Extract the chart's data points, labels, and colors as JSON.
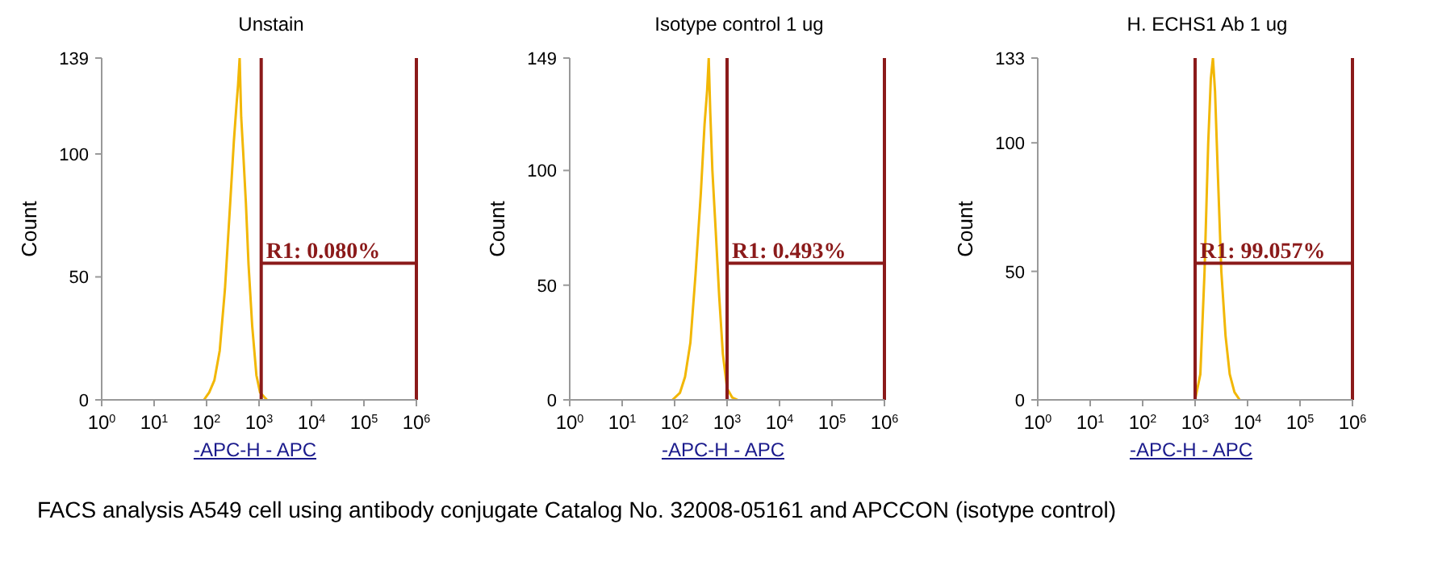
{
  "chart_data": [
    {
      "type": "line",
      "title": "Unstain",
      "xlabel": "-APC-H - APC",
      "ylabel": "Count",
      "log": "x",
      "marker": "none",
      "x": [
        89,
        112,
        141,
        178,
        224,
        282,
        331,
        372,
        398,
        427,
        457,
        501,
        562,
        631,
        741,
        891,
        1047,
        1413
      ],
      "series": [
        {
          "color": "#f2b705",
          "values": [
            0,
            3,
            8,
            20,
            45,
            80,
            105,
            120,
            128,
            139,
            115,
            100,
            80,
            55,
            30,
            10,
            3,
            0
          ]
        }
      ],
      "xlim": [
        1,
        1000000
      ],
      "xticks": [
        {
          "value": 1,
          "label": "10$^{0}$"
        },
        {
          "value": 10,
          "label": "10$^{1}$"
        },
        {
          "value": 100,
          "label": "10$^{2}$"
        },
        {
          "value": 1000,
          "label": "10$^{3}$"
        },
        {
          "value": 10000,
          "label": "10$^{4}$"
        },
        {
          "value": 100000,
          "label": "10$^{5}$"
        },
        {
          "value": 1000000,
          "label": "10$^{6}$"
        }
      ],
      "ylim": [
        0,
        139
      ],
      "yticks": [
        0,
        50,
        100,
        139
      ],
      "ref_lines": [
        {
          "axis": "x",
          "value": 1100,
          "color": "#8b1a1a"
        },
        {
          "axis": "x",
          "value": 1000000,
          "color": "#8b1a1a"
        }
      ],
      "annotations": [
        "R1: 0.080%",
        "FACS analysis A549 cell using antibody conjugate Catalog No. 32008-05161 and APCCON (isotype control)"
      ]
    },
    {
      "type": "line",
      "title": "Isotype control 1 ug",
      "xlabel": "-APC-H - APC",
      "ylabel": "Count",
      "log": "x",
      "marker": "none",
      "x": [
        91,
        126,
        158,
        200,
        251,
        316,
        372,
        417,
        447,
        479,
        525,
        603,
        708,
        832,
        1000,
        1259,
        1585
      ],
      "series": [
        {
          "color": "#f2b705",
          "values": [
            0,
            3,
            10,
            25,
            55,
            90,
            120,
            135,
            149,
            125,
            100,
            75,
            45,
            20,
            5,
            1,
            0
          ]
        }
      ],
      "xlim": [
        1,
        1000000
      ],
      "xticks": [
        {
          "value": 1,
          "label": "10$^{0}$"
        },
        {
          "value": 10,
          "label": "10$^{1}$"
        },
        {
          "value": 100,
          "label": "10$^{2}$"
        },
        {
          "value": 1000,
          "label": "10$^{3}$"
        },
        {
          "value": 10000,
          "label": "10$^{4}$"
        },
        {
          "value": 100000,
          "label": "10$^{5}$"
        },
        {
          "value": 1000000,
          "label": "10$^{6}$"
        }
      ],
      "ylim": [
        0,
        149
      ],
      "yticks": [
        0,
        50,
        100,
        149
      ],
      "ref_lines": [
        {
          "axis": "x",
          "value": 1000,
          "color": "#8b1a1a"
        },
        {
          "axis": "x",
          "value": 1000000,
          "color": "#8b1a1a"
        }
      ],
      "annotations": [
        "R1: 0.493%"
      ]
    },
    {
      "type": "line",
      "title": "H. ECHS1 Ab 1 ug",
      "xlabel": "-APC-H - APC",
      "ylabel": "Count",
      "log": "x",
      "marker": "none",
      "x": [
        1000,
        1259,
        1514,
        1778,
        1995,
        2188,
        2399,
        2692,
        3162,
        3802,
        4571,
        5623,
        7079
      ],
      "series": [
        {
          "color": "#f2b705",
          "values": [
            0,
            10,
            50,
            100,
            125,
            133,
            120,
            90,
            50,
            25,
            10,
            3,
            0
          ]
        }
      ],
      "xlim": [
        1,
        1000000
      ],
      "xticks": [
        {
          "value": 1,
          "label": "10$^{0}$"
        },
        {
          "value": 10,
          "label": "10$^{1}$"
        },
        {
          "value": 100,
          "label": "10$^{2}$"
        },
        {
          "value": 1000,
          "label": "10$^{3}$"
        },
        {
          "value": 10000,
          "label": "10$^{4}$"
        },
        {
          "value": 100000,
          "label": "10$^{5}$"
        },
        {
          "value": 1000000,
          "label": "10$^{6}$"
        }
      ],
      "ylim": [
        0,
        133
      ],
      "yticks": [
        0,
        50,
        100,
        133
      ],
      "ref_lines": [
        {
          "axis": "x",
          "value": 1000,
          "color": "#8b1a1a"
        },
        {
          "axis": "x",
          "value": 1000000,
          "color": "#8b1a1a"
        }
      ],
      "annotations": [
        "R1: 99.057%"
      ]
    }
  ]
}
